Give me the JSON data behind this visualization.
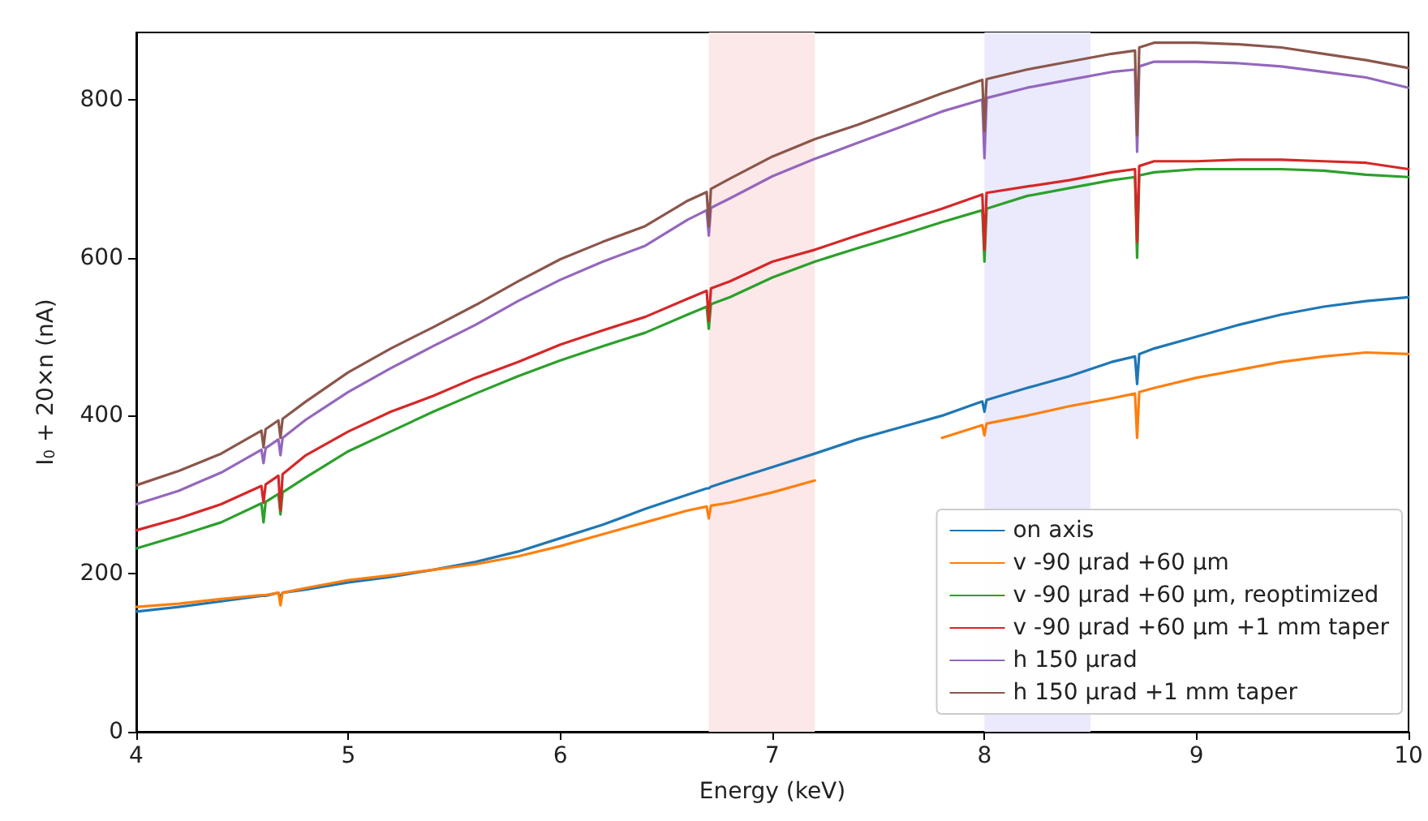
{
  "chart_data": {
    "type": "line",
    "xlabel": "Energy (keV)",
    "ylabel": "I$_{0}$ + 20×n (nA)",
    "x": [
      4.0,
      4.2,
      4.4,
      4.59,
      4.6,
      4.61,
      4.67,
      4.68,
      4.69,
      4.8,
      5.0,
      5.2,
      5.4,
      5.6,
      5.8,
      6.0,
      6.2,
      6.4,
      6.6,
      6.69,
      6.7,
      6.71,
      6.8,
      7.0,
      7.2,
      7.4,
      7.6,
      7.8,
      7.99,
      8.0,
      8.01,
      8.2,
      8.4,
      8.6,
      8.71,
      8.72,
      8.73,
      8.8,
      9.0,
      9.2,
      9.4,
      9.6,
      9.8,
      10.0
    ],
    "series": [
      {
        "name": "on axis",
        "color": "#1f77b4",
        "values": [
          152,
          158,
          165,
          172,
          172,
          172,
          176,
          170,
          176,
          180,
          189,
          196,
          205,
          215,
          228,
          245,
          262,
          282,
          300,
          308,
          308,
          310,
          318,
          335,
          352,
          370,
          385,
          400,
          418,
          405,
          420,
          435,
          450,
          468,
          475,
          440,
          478,
          485,
          500,
          515,
          528,
          538,
          545,
          550
        ]
      },
      {
        "name": "v -90 µrad +60 µm",
        "color": "#ff7f0e",
        "values": [
          158,
          162,
          168,
          173,
          173,
          173,
          176,
          160,
          176,
          182,
          192,
          198,
          205,
          212,
          222,
          235,
          250,
          265,
          280,
          285,
          270,
          286,
          290,
          303,
          318,
          null,
          null,
          372,
          388,
          375,
          390,
          400,
          412,
          422,
          428,
          372,
          430,
          435,
          448,
          458,
          468,
          475,
          480,
          478
        ]
      },
      {
        "name": "v -90 µrad +60 µm, reoptimized",
        "color": "#2ca02c",
        "values": [
          232,
          248,
          265,
          289,
          265,
          291,
          301,
          275,
          303,
          322,
          355,
          380,
          405,
          428,
          450,
          470,
          488,
          505,
          528,
          538,
          510,
          541,
          550,
          575,
          595,
          612,
          628,
          645,
          660,
          595,
          662,
          678,
          688,
          698,
          702,
          600,
          704,
          708,
          712,
          712,
          712,
          710,
          705,
          702
        ]
      },
      {
        "name": "v -90 µrad +60 µm +1 mm taper",
        "color": "#d62728",
        "values": [
          255,
          270,
          288,
          311,
          290,
          313,
          324,
          280,
          326,
          350,
          380,
          405,
          425,
          448,
          468,
          490,
          508,
          525,
          548,
          558,
          520,
          561,
          570,
          595,
          610,
          628,
          645,
          662,
          680,
          610,
          682,
          690,
          698,
          708,
          712,
          620,
          716,
          722,
          722,
          724,
          724,
          722,
          720,
          712
        ]
      },
      {
        "name": "h 150 µrad",
        "color": "#9467bd",
        "values": [
          288,
          305,
          328,
          357,
          340,
          359,
          370,
          350,
          372,
          395,
          430,
          460,
          488,
          515,
          545,
          572,
          595,
          615,
          648,
          660,
          628,
          663,
          675,
          703,
          725,
          745,
          765,
          785,
          800,
          726,
          802,
          815,
          825,
          835,
          838,
          734,
          842,
          848,
          848,
          846,
          842,
          835,
          828,
          815
        ]
      },
      {
        "name": "h 150 µrad +1 mm taper",
        "color": "#8c564b",
        "values": [
          312,
          330,
          352,
          381,
          360,
          383,
          394,
          372,
          396,
          418,
          455,
          485,
          512,
          540,
          570,
          598,
          620,
          640,
          672,
          683,
          640,
          687,
          700,
          728,
          750,
          768,
          788,
          808,
          825,
          760,
          826,
          838,
          848,
          858,
          862,
          755,
          866,
          872,
          872,
          870,
          866,
          858,
          850,
          840
        ]
      }
    ],
    "bands": [
      {
        "axis": "x",
        "from": 6.7,
        "to": 7.2,
        "color": "#fce8e8"
      },
      {
        "axis": "x",
        "from": 8.0,
        "to": 8.5,
        "color": "#eaeafc"
      }
    ],
    "xlim": [
      4,
      10
    ],
    "xticks": [
      4,
      5,
      6,
      7,
      8,
      9,
      10
    ],
    "ylim": [
      0,
      885
    ],
    "yticks": [
      0,
      200,
      400,
      600,
      800
    ],
    "grid": false,
    "legend": "bottom right",
    "marker": "none",
    "line_style": "solid"
  }
}
